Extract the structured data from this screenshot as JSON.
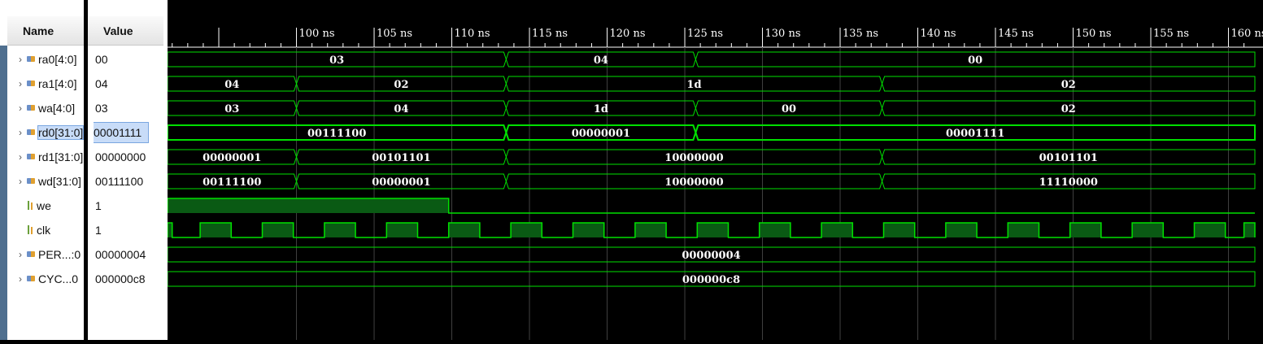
{
  "columns": {
    "name_header": "Name",
    "value_header": "Value"
  },
  "colors": {
    "wave": "#00e000",
    "fill": "#0a5a14",
    "grid": "#404040",
    "text": "#ffffff"
  },
  "time_axis": {
    "unit": "ns",
    "start": 91.7,
    "end": 161.7,
    "ticks": [
      100,
      105,
      110,
      115,
      120,
      125,
      130,
      135,
      140,
      145,
      150,
      155,
      160
    ],
    "tick_labels": [
      "100 ns",
      "105 ns",
      "110 ns",
      "115 ns",
      "120 ns",
      "125 ns",
      "130 ns",
      "135 ns",
      "140 ns",
      "145 ns",
      "150 ns",
      "155 ns",
      "160 ns"
    ]
  },
  "signals": [
    {
      "name": "ra0[4:0]",
      "value": "00",
      "kind": "bus",
      "expandable": true,
      "segments": [
        {
          "t0": 91.7,
          "t1": 113.5,
          "v": "03"
        },
        {
          "t0": 113.5,
          "t1": 125.7,
          "v": "04"
        },
        {
          "t0": 125.7,
          "t1": 161.7,
          "v": "00"
        }
      ]
    },
    {
      "name": "ra1[4:0]",
      "value": "04",
      "kind": "bus",
      "expandable": true,
      "segments": [
        {
          "t0": 91.7,
          "t1": 100,
          "v": "04"
        },
        {
          "t0": 100,
          "t1": 113.5,
          "v": "02"
        },
        {
          "t0": 113.5,
          "t1": 137.7,
          "v": "1d"
        },
        {
          "t0": 137.7,
          "t1": 161.7,
          "v": "02"
        }
      ]
    },
    {
      "name": "wa[4:0]",
      "value": "03",
      "kind": "bus",
      "expandable": true,
      "segments": [
        {
          "t0": 91.7,
          "t1": 100,
          "v": "03"
        },
        {
          "t0": 100,
          "t1": 113.5,
          "v": "04"
        },
        {
          "t0": 113.5,
          "t1": 125.7,
          "v": "1d"
        },
        {
          "t0": 125.7,
          "t1": 137.7,
          "v": "00"
        },
        {
          "t0": 137.7,
          "t1": 161.7,
          "v": "02"
        }
      ]
    },
    {
      "name": "rd0[31:0]",
      "value": "00001111",
      "kind": "bus",
      "expandable": true,
      "selected": true,
      "segments": [
        {
          "t0": 91.7,
          "t1": 113.5,
          "v": "00111100"
        },
        {
          "t0": 113.5,
          "t1": 125.7,
          "v": "00000001"
        },
        {
          "t0": 125.7,
          "t1": 161.7,
          "v": "00001111"
        }
      ]
    },
    {
      "name": "rd1[31:0]",
      "value": "00000000",
      "kind": "bus",
      "expandable": true,
      "segments": [
        {
          "t0": 91.7,
          "t1": 100,
          "v": "00000001"
        },
        {
          "t0": 100,
          "t1": 113.5,
          "v": "00101101"
        },
        {
          "t0": 113.5,
          "t1": 137.7,
          "v": "10000000"
        },
        {
          "t0": 137.7,
          "t1": 161.7,
          "v": "00101101"
        }
      ]
    },
    {
      "name": "wd[31:0]",
      "value": "00111100",
      "kind": "bus",
      "expandable": true,
      "segments": [
        {
          "t0": 91.7,
          "t1": 100,
          "v": "00111100"
        },
        {
          "t0": 100,
          "t1": 113.5,
          "v": "00000001"
        },
        {
          "t0": 113.5,
          "t1": 137.7,
          "v": "10000000"
        },
        {
          "t0": 137.7,
          "t1": 161.7,
          "v": "11110000"
        }
      ]
    },
    {
      "name": "we",
      "value": "1",
      "kind": "bit",
      "expandable": false,
      "high": [
        {
          "t0": 91.7,
          "t1": 109.8
        }
      ]
    },
    {
      "name": "clk",
      "value": "1",
      "kind": "bit",
      "expandable": false,
      "high": [
        {
          "t0": 91.7,
          "t1": 92
        },
        {
          "t0": 93.8,
          "t1": 95.8
        },
        {
          "t0": 97.8,
          "t1": 99.8
        },
        {
          "t0": 101.8,
          "t1": 103.8
        },
        {
          "t0": 105.8,
          "t1": 107.8
        },
        {
          "t0": 109.8,
          "t1": 111.8
        },
        {
          "t0": 113.8,
          "t1": 115.8
        },
        {
          "t0": 117.8,
          "t1": 119.8
        },
        {
          "t0": 121.8,
          "t1": 123.8
        },
        {
          "t0": 125.8,
          "t1": 127.8
        },
        {
          "t0": 129.8,
          "t1": 131.8
        },
        {
          "t0": 133.8,
          "t1": 135.8
        },
        {
          "t0": 137.8,
          "t1": 139.8
        },
        {
          "t0": 141.8,
          "t1": 143.8
        },
        {
          "t0": 145.8,
          "t1": 147.8
        },
        {
          "t0": 149.8,
          "t1": 151.8
        },
        {
          "t0": 153.8,
          "t1": 155.8
        },
        {
          "t0": 157.8,
          "t1": 159.8
        },
        {
          "t0": 161,
          "t1": 161.7
        }
      ]
    },
    {
      "name": "PER...:0",
      "value": "00000004",
      "kind": "bus",
      "expandable": true,
      "segments": [
        {
          "t0": 91.7,
          "t1": 161.7,
          "v": "00000004"
        }
      ]
    },
    {
      "name": "CYC...0",
      "value": "000000c8",
      "kind": "bus",
      "expandable": true,
      "segments": [
        {
          "t0": 91.7,
          "t1": 161.7,
          "v": "000000c8"
        }
      ]
    }
  ]
}
